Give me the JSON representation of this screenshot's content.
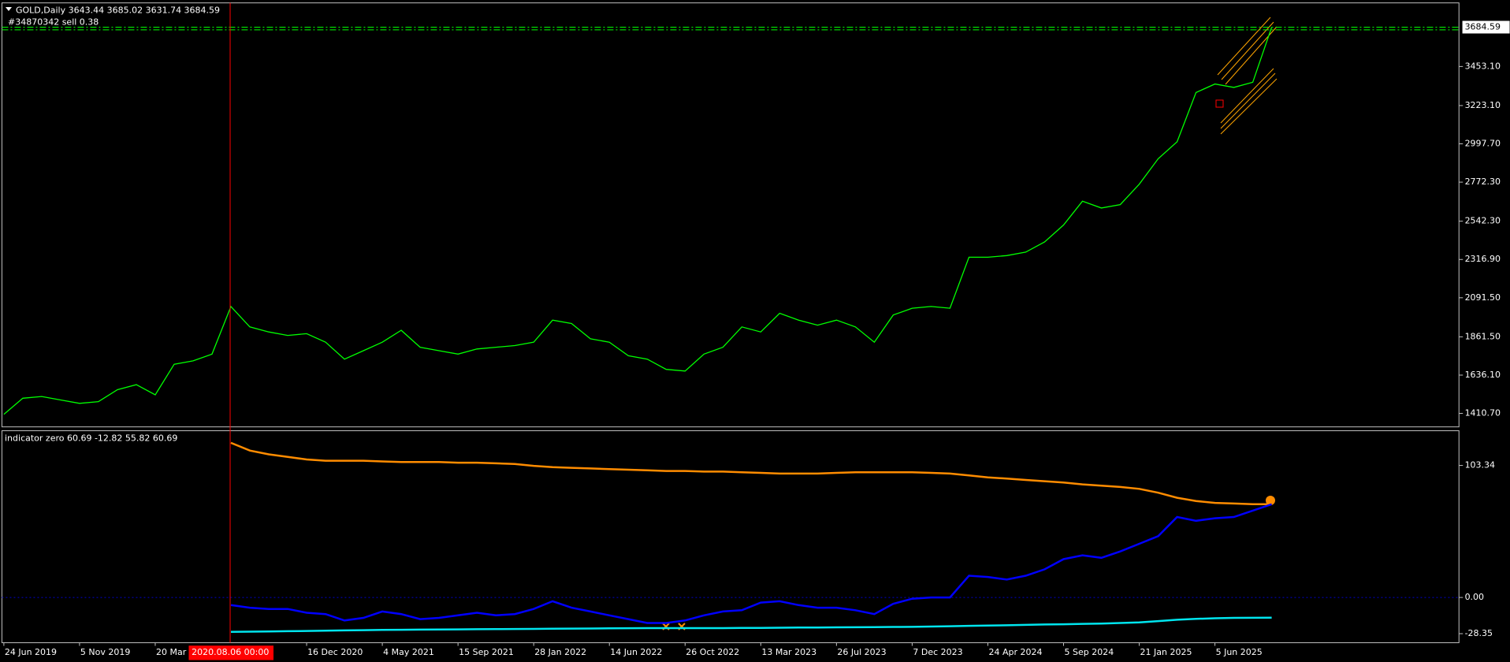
{
  "chart_data": [
    {
      "type": "line",
      "title": "GOLD,Daily  3643.44 3685.02 3631.74 3684.59",
      "order_label": "#34870342 sell 0.38",
      "current_price": 3684.59,
      "order_price": 3668.7,
      "series": [
        {
          "color": "#00ff00",
          "values": [
            1405,
            1500,
            1510,
            1490,
            1470,
            1480,
            1550,
            1580,
            1520,
            1700,
            1720,
            1760,
            2040,
            1920,
            1890,
            1870,
            1880,
            1830,
            1730,
            1780,
            1830,
            1900,
            1800,
            1780,
            1760,
            1790,
            1800,
            1810,
            1830,
            1960,
            1940,
            1850,
            1830,
            1750,
            1730,
            1670,
            1660,
            1760,
            1800,
            1920,
            1890,
            2000,
            1960,
            1930,
            1960,
            1920,
            1830,
            1990,
            2030,
            2040,
            2030,
            2330,
            2330,
            2340,
            2360,
            2420,
            2520,
            2660,
            2620,
            2640,
            2760,
            2910,
            3010,
            3300,
            3350,
            3330,
            3360,
            3684.59
          ]
        }
      ],
      "ylim": [
        1331.3,
        3827.5
      ],
      "yticks": [
        {
          "value": 3453.1,
          "label": "3453.10"
        },
        {
          "value": 3223.1,
          "label": "3223.10"
        },
        {
          "value": 2997.7,
          "label": "2997.70"
        },
        {
          "value": 2772.3,
          "label": "2772.30"
        },
        {
          "value": 2542.3,
          "label": "2542.30"
        },
        {
          "value": 2316.9,
          "label": "2316.90"
        },
        {
          "value": 2091.5,
          "label": "2091.50"
        },
        {
          "value": 1861.5,
          "label": "1861.50"
        },
        {
          "value": 1636.1,
          "label": "1636.10"
        },
        {
          "value": 1410.7,
          "label": "1410.70"
        }
      ]
    },
    {
      "type": "line",
      "title": "indicator zero 60.69 -12.82 55.82 60.69",
      "crosshair_label": "2020.08.06 00:00",
      "x": [
        "24 Jun 2019",
        null,
        null,
        null,
        "5 Nov 2019",
        null,
        null,
        null,
        "20 Mar 2020",
        null,
        null,
        null,
        null,
        null,
        null,
        null,
        "16 Dec 2020",
        null,
        null,
        null,
        "4 May 2021",
        null,
        null,
        null,
        "15 Sep 2021",
        null,
        null,
        null,
        "28 Jan 2022",
        null,
        null,
        null,
        "14 Jun 2022",
        null,
        null,
        null,
        "26 Oct 2022",
        null,
        null,
        null,
        "13 Mar 2023",
        null,
        null,
        null,
        "26 Jul 2023",
        null,
        null,
        null,
        "7 Dec 2023",
        null,
        null,
        null,
        "24 Apr 2024",
        null,
        null,
        null,
        "5 Sep 2024",
        null,
        null,
        null,
        "21 Jan 2025",
        null,
        null,
        null,
        "5 Jun 2025",
        null,
        null,
        null
      ],
      "series": [
        {
          "color": "#ff8c00",
          "values": [
            null,
            null,
            null,
            null,
            null,
            null,
            null,
            null,
            null,
            null,
            null,
            null,
            121,
            115,
            112,
            110,
            108,
            107,
            107,
            107,
            106.5,
            106,
            106,
            106,
            105.5,
            105.5,
            105,
            104.5,
            103,
            102,
            101.5,
            101,
            100.5,
            100,
            99.5,
            99,
            99,
            98.5,
            98.5,
            98,
            97.5,
            97,
            97,
            97,
            97.5,
            98,
            98,
            98,
            98,
            97.5,
            97,
            95.5,
            94,
            93,
            92,
            91,
            90,
            88.5,
            87.5,
            86.5,
            85,
            82,
            78,
            75.5,
            74,
            73.5,
            73,
            73
          ]
        },
        {
          "color": "#0000ff",
          "values": [
            null,
            null,
            null,
            null,
            null,
            null,
            null,
            null,
            null,
            null,
            null,
            null,
            -6,
            -8,
            -9,
            -9,
            -12,
            -13,
            -18,
            -16,
            -11,
            -13,
            -17,
            -16,
            -14,
            -12,
            -14,
            -13,
            -9,
            -3,
            -8,
            -11,
            -14,
            -17,
            -20,
            -20,
            -18,
            -14,
            -11,
            -10,
            -4,
            -3,
            -6,
            -8,
            -8,
            -10,
            -13,
            -5,
            -1,
            0,
            0,
            17,
            16,
            14,
            17,
            22,
            30,
            33,
            31,
            36,
            42,
            48,
            63,
            60,
            62,
            63,
            68,
            73
          ]
        },
        {
          "color": "#00e5ee",
          "values": [
            null,
            null,
            null,
            null,
            null,
            null,
            null,
            null,
            null,
            null,
            null,
            null,
            -27,
            -26.8,
            -26.6,
            -26.4,
            -26.2,
            -26,
            -25.8,
            -25.6,
            -25.4,
            -25.3,
            -25.2,
            -25.1,
            -25,
            -24.9,
            -24.8,
            -24.7,
            -24.6,
            -24.5,
            -24.4,
            -24.3,
            -24.2,
            -24.1,
            -24,
            -24,
            -24,
            -24,
            -24,
            -23.9,
            -23.8,
            -23.7,
            -23.6,
            -23.5,
            -23.4,
            -23.3,
            -23.2,
            -23.1,
            -23,
            -22.8,
            -22.5,
            -22.2,
            -22,
            -21.8,
            -21.5,
            -21.2,
            -21,
            -20.7,
            -20.4,
            -20,
            -19.5,
            -18.5,
            -17.5,
            -16.8,
            -16.3,
            -16,
            -15.9,
            -15.8
          ]
        }
      ],
      "ylim": [
        -35.45,
        130.5
      ],
      "yticks": [
        103.34,
        {
          "value": 0,
          "label": "0.00"
        },
        -28.35
      ]
    }
  ]
}
